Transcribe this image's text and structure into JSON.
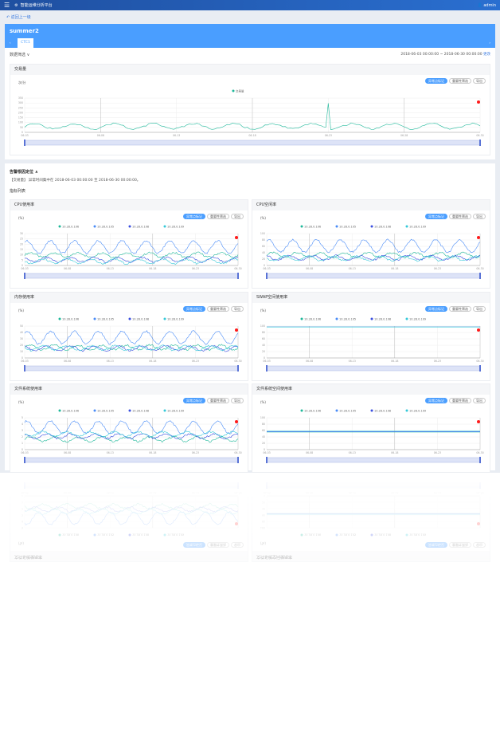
{
  "header": {
    "app_name": "智能运维分析平台",
    "user": "admin"
  },
  "back_label": "返回上一级",
  "panel": {
    "title": "summer2",
    "tab": "CTC1"
  },
  "filter": {
    "label": "数据筛选 ∨",
    "range": "2018-06-03 00:00:00 ~ 2018-06-30 00:00:00",
    "change": "更改"
  },
  "buttons": {
    "anomaly": "异常点标记",
    "importance": "重要性筛选",
    "export": "导出"
  },
  "main_chart": {
    "title": "交易量",
    "unit": "次/分",
    "legend": [
      "交易量"
    ],
    "colors": [
      "#1fb89a"
    ],
    "yticks": [
      "0",
      "50",
      "100",
      "150",
      "200",
      "250",
      "300",
      "350"
    ],
    "xticks": [
      "06-03",
      "06-08",
      "06-13",
      "06-18",
      "06-23",
      "06-28",
      "06-30"
    ]
  },
  "analysis": {
    "title": "告警根因定位 ∧",
    "text": "【交易量】 异常时间集中在 2018-06-03 00:00:00 至 2018-06-30 00:00:00。",
    "list_title": "指标列表"
  },
  "charts": [
    {
      "title": "CPU使用率",
      "unit": "(%)",
      "legend": [
        "10.28.0.106",
        "10.28.0.105",
        "10.28.0.108",
        "10.28.0.109"
      ],
      "yticks": [
        "0",
        "5",
        "10",
        "15",
        "20",
        "25",
        "30"
      ],
      "xticks": [
        "06-03",
        "06-08",
        "06-13",
        "06-18",
        "06-23",
        "06-30"
      ]
    },
    {
      "title": "CPU空闲率",
      "unit": "(%)",
      "legend": [
        "10.28.0.106",
        "10.28.0.105",
        "10.28.0.108",
        "10.28.0.109"
      ],
      "yticks": [
        "0",
        "20",
        "40",
        "60",
        "80",
        "100"
      ],
      "xticks": [
        "06-03",
        "06-08",
        "06-13",
        "06-18",
        "06-23",
        "06-30"
      ]
    },
    {
      "title": "内存使用率",
      "unit": "(%)",
      "legend": [
        "10.28.0.106",
        "10.28.0.105",
        "10.28.0.108",
        "10.28.0.109"
      ],
      "yticks": [
        "0",
        "10",
        "20",
        "30",
        "40",
        "50"
      ],
      "xticks": [
        "06-03",
        "06-08",
        "06-13",
        "06-18",
        "06-23",
        "06-30"
      ]
    },
    {
      "title": "SWAP空间使用率",
      "unit": "(%)",
      "legend": [
        "10.28.0.106",
        "10.28.0.105",
        "10.28.0.108",
        "10.28.0.109"
      ],
      "yticks": [
        "0",
        "20",
        "40",
        "60",
        "80",
        "100"
      ],
      "xticks": [
        "06-03",
        "06-08",
        "06-13",
        "06-18",
        "06-23",
        "06-30"
      ]
    },
    {
      "title": "文件系统使用率",
      "unit": "(%)",
      "legend": [
        "10.28.0.106",
        "10.28.0.105",
        "10.28.0.108",
        "10.28.0.109"
      ],
      "yticks": [
        "0",
        "1",
        "2",
        "3",
        "4",
        "5"
      ],
      "xticks": [
        "06-03",
        "06-08",
        "06-13",
        "06-18",
        "06-23",
        "06-30"
      ]
    },
    {
      "title": "文件系统空间使用率",
      "unit": "(%)",
      "legend": [
        "10.28.0.106",
        "10.28.0.105",
        "10.28.0.108",
        "10.28.0.109"
      ],
      "yticks": [
        "0",
        "20",
        "40",
        "60",
        "80",
        "100"
      ],
      "xticks": [
        "06-03",
        "06-08",
        "06-13",
        "06-18",
        "06-23",
        "06-30"
      ]
    }
  ],
  "series_colors": [
    "#1fb89a",
    "#4a8cf7",
    "#3b4fe0",
    "#36c9d9"
  ],
  "anomaly_color": "#ff1a1a"
}
